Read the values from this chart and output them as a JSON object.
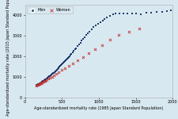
{
  "xlabel": "Age-standardized mortality rate (1985 Japan Standard Population)",
  "ylabel": "Age-standardized mortality rate (2015 Japan Standard Population)",
  "xlim": [
    0,
    2000
  ],
  "ylim": [
    0,
    4500
  ],
  "xticks": [
    0,
    500,
    1000,
    1500,
    2000
  ],
  "yticks": [
    0,
    1000,
    2000,
    3000,
    4000
  ],
  "bg_color": "#d8e8f0",
  "men_color": "#1f3d6e",
  "women_color": "#c03030",
  "men_label": "Men",
  "women_label": "Women",
  "men_x": [
    155,
    160,
    165,
    170,
    175,
    180,
    185,
    190,
    195,
    200,
    205,
    210,
    215,
    220,
    225,
    230,
    235,
    240,
    245,
    250,
    255,
    260,
    265,
    270,
    275,
    280,
    285,
    290,
    295,
    300,
    310,
    320,
    330,
    340,
    350,
    360,
    370,
    380,
    390,
    400,
    410,
    420,
    430,
    440,
    450,
    460,
    470,
    480,
    490,
    500,
    510,
    520,
    530,
    540,
    550,
    560,
    570,
    580,
    590,
    600,
    615,
    630,
    645,
    660,
    675,
    690,
    710,
    730,
    750,
    770,
    790,
    810,
    830,
    850,
    870,
    900,
    930,
    960,
    990,
    1020,
    1050,
    1080,
    1110,
    1150,
    1190,
    1230,
    1280,
    1330,
    1390,
    1450,
    1510,
    1570,
    1640,
    1710,
    1780,
    1860,
    1920,
    1980
  ],
  "men_y": [
    590,
    605,
    615,
    625,
    635,
    645,
    655,
    665,
    675,
    685,
    695,
    705,
    718,
    730,
    742,
    754,
    766,
    778,
    790,
    802,
    815,
    828,
    841,
    854,
    867,
    880,
    893,
    906,
    920,
    934,
    963,
    993,
    1023,
    1053,
    1083,
    1113,
    1145,
    1177,
    1210,
    1243,
    1277,
    1312,
    1347,
    1382,
    1418,
    1454,
    1490,
    1527,
    1565,
    1603,
    1642,
    1681,
    1720,
    1760,
    1800,
    1840,
    1881,
    1922,
    1963,
    2004,
    2068,
    2132,
    2198,
    2264,
    2330,
    2397,
    2490,
    2580,
    2670,
    2760,
    2850,
    2940,
    3030,
    3110,
    3190,
    3300,
    3410,
    3500,
    3580,
    3660,
    3740,
    3820,
    3900,
    3970,
    4020,
    4060,
    4080,
    4090,
    4080,
    4070,
    4060,
    4050,
    4100,
    4130,
    4150,
    4170,
    4200,
    4230
  ],
  "women_x": [
    155,
    165,
    175,
    185,
    195,
    205,
    215,
    225,
    235,
    248,
    262,
    278,
    295,
    315,
    340,
    365,
    393,
    425,
    460,
    500,
    545,
    595,
    650,
    715,
    785,
    860,
    945,
    1040,
    1150,
    1270,
    1410,
    1550
  ],
  "women_y": [
    580,
    600,
    618,
    636,
    655,
    674,
    694,
    714,
    736,
    762,
    792,
    826,
    863,
    906,
    960,
    1018,
    1082,
    1155,
    1238,
    1328,
    1428,
    1540,
    1665,
    1808,
    1968,
    2143,
    2338,
    2555,
    2790,
    3040,
    3200,
    3350
  ]
}
